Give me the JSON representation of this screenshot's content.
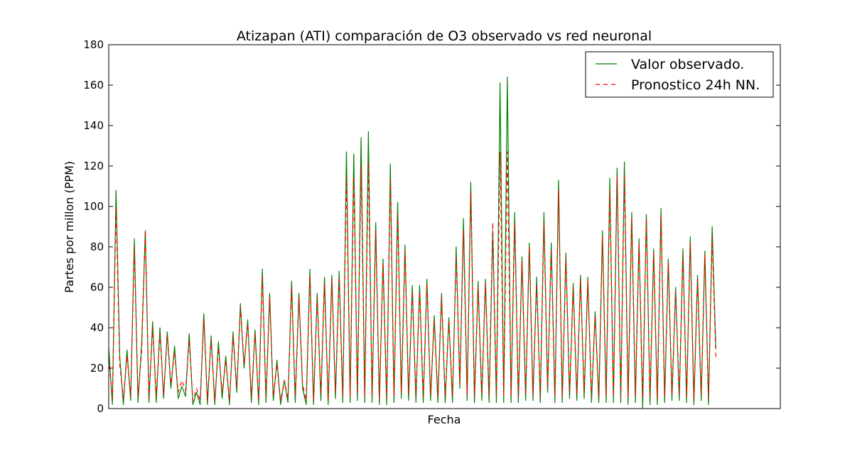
{
  "chart_data": {
    "type": "line",
    "title": "Atizapan (ATI) comparación de O3 observado vs red neuronal",
    "xlabel": "Fecha",
    "ylabel": "Partes por millon (PPM)",
    "ylim": [
      0,
      180
    ],
    "yticks": [
      0,
      20,
      40,
      60,
      80,
      100,
      120,
      140,
      160,
      180
    ],
    "x_tick_labels": [],
    "legend": {
      "placement": "top-right"
    },
    "grid": false,
    "x_approx": "hours elapsed (approximate, no dates printed on axis)",
    "series": [
      {
        "name": "Valor observado.",
        "color": "#008000",
        "style": "solid",
        "points": [
          [
            0,
            30
          ],
          [
            12,
            2
          ],
          [
            24,
            108
          ],
          [
            36,
            26
          ],
          [
            48,
            2
          ],
          [
            60,
            29
          ],
          [
            72,
            4
          ],
          [
            84,
            84
          ],
          [
            96,
            3
          ],
          [
            108,
            32
          ],
          [
            120,
            88
          ],
          [
            132,
            3
          ],
          [
            144,
            43
          ],
          [
            156,
            3
          ],
          [
            168,
            40
          ],
          [
            180,
            5
          ],
          [
            192,
            38
          ],
          [
            204,
            10
          ],
          [
            216,
            31
          ],
          [
            228,
            5
          ],
          [
            240,
            11
          ],
          [
            252,
            6
          ],
          [
            264,
            37
          ],
          [
            276,
            2
          ],
          [
            288,
            8
          ],
          [
            300,
            2
          ],
          [
            312,
            47
          ],
          [
            324,
            2
          ],
          [
            336,
            36
          ],
          [
            348,
            2
          ],
          [
            360,
            33
          ],
          [
            372,
            5
          ],
          [
            384,
            26
          ],
          [
            396,
            2
          ],
          [
            408,
            38
          ],
          [
            420,
            8
          ],
          [
            432,
            52
          ],
          [
            444,
            20
          ],
          [
            456,
            44
          ],
          [
            468,
            3
          ],
          [
            480,
            39
          ],
          [
            492,
            2
          ],
          [
            504,
            69
          ],
          [
            516,
            3
          ],
          [
            528,
            57
          ],
          [
            540,
            4
          ],
          [
            552,
            24
          ],
          [
            564,
            2
          ],
          [
            576,
            14
          ],
          [
            588,
            3
          ],
          [
            600,
            63
          ],
          [
            612,
            3
          ],
          [
            624,
            57
          ],
          [
            636,
            10
          ],
          [
            648,
            2
          ],
          [
            660,
            69
          ],
          [
            672,
            2
          ],
          [
            684,
            57
          ],
          [
            696,
            4
          ],
          [
            708,
            65
          ],
          [
            720,
            2
          ],
          [
            732,
            66
          ],
          [
            744,
            5
          ],
          [
            756,
            68
          ],
          [
            768,
            3
          ],
          [
            780,
            127
          ],
          [
            792,
            3
          ],
          [
            804,
            126
          ],
          [
            816,
            4
          ],
          [
            828,
            134
          ],
          [
            840,
            3
          ],
          [
            852,
            137
          ],
          [
            864,
            3
          ],
          [
            876,
            92
          ],
          [
            888,
            2
          ],
          [
            900,
            74
          ],
          [
            912,
            2
          ],
          [
            924,
            121
          ],
          [
            936,
            3
          ],
          [
            948,
            102
          ],
          [
            960,
            5
          ],
          [
            972,
            81
          ],
          [
            984,
            4
          ],
          [
            996,
            61
          ],
          [
            1008,
            3
          ],
          [
            1020,
            61
          ],
          [
            1032,
            3
          ],
          [
            1044,
            64
          ],
          [
            1056,
            4
          ],
          [
            1068,
            46
          ],
          [
            1080,
            3
          ],
          [
            1092,
            57
          ],
          [
            1104,
            3
          ],
          [
            1116,
            45
          ],
          [
            1128,
            3
          ],
          [
            1140,
            80
          ],
          [
            1152,
            10
          ],
          [
            1164,
            94
          ],
          [
            1176,
            4
          ],
          [
            1188,
            112
          ],
          [
            1200,
            3
          ],
          [
            1212,
            63
          ],
          [
            1224,
            4
          ],
          [
            1236,
            64
          ],
          [
            1248,
            3
          ],
          [
            1260,
            88
          ],
          [
            1272,
            3
          ],
          [
            1284,
            161
          ],
          [
            1296,
            3
          ],
          [
            1308,
            164
          ],
          [
            1320,
            3
          ],
          [
            1332,
            97
          ],
          [
            1344,
            3
          ],
          [
            1356,
            75
          ],
          [
            1368,
            4
          ],
          [
            1380,
            82
          ],
          [
            1392,
            4
          ],
          [
            1404,
            65
          ],
          [
            1416,
            3
          ],
          [
            1428,
            97
          ],
          [
            1440,
            8
          ],
          [
            1452,
            82
          ],
          [
            1464,
            3
          ],
          [
            1476,
            113
          ],
          [
            1488,
            3
          ],
          [
            1500,
            77
          ],
          [
            1512,
            5
          ],
          [
            1524,
            62
          ],
          [
            1536,
            4
          ],
          [
            1548,
            66
          ],
          [
            1560,
            5
          ],
          [
            1572,
            65
          ],
          [
            1584,
            3
          ],
          [
            1596,
            48
          ],
          [
            1608,
            3
          ],
          [
            1620,
            88
          ],
          [
            1632,
            3
          ],
          [
            1644,
            114
          ],
          [
            1656,
            3
          ],
          [
            1668,
            119
          ],
          [
            1680,
            3
          ],
          [
            1692,
            122
          ],
          [
            1704,
            2
          ],
          [
            1716,
            97
          ],
          [
            1728,
            3
          ],
          [
            1740,
            84
          ],
          [
            1752,
            0
          ],
          [
            1764,
            96
          ],
          [
            1776,
            2
          ],
          [
            1788,
            79
          ],
          [
            1800,
            2
          ],
          [
            1812,
            99
          ],
          [
            1824,
            3
          ],
          [
            1836,
            74
          ],
          [
            1848,
            4
          ],
          [
            1860,
            60
          ],
          [
            1872,
            4
          ],
          [
            1884,
            79
          ],
          [
            1896,
            3
          ],
          [
            1908,
            85
          ],
          [
            1920,
            2
          ],
          [
            1932,
            66
          ],
          [
            1944,
            4
          ],
          [
            1956,
            78
          ],
          [
            1968,
            2
          ],
          [
            1980,
            90
          ],
          [
            1992,
            30
          ]
        ]
      },
      {
        "name": "Pronostico 24h NN.",
        "color": "#ff0000",
        "style": "dashed",
        "points": [
          [
            0,
            25
          ],
          [
            12,
            5
          ],
          [
            24,
            100
          ],
          [
            36,
            22
          ],
          [
            48,
            5
          ],
          [
            60,
            26
          ],
          [
            72,
            6
          ],
          [
            84,
            80
          ],
          [
            96,
            6
          ],
          [
            108,
            28
          ],
          [
            120,
            88
          ],
          [
            132,
            5
          ],
          [
            144,
            40
          ],
          [
            156,
            6
          ],
          [
            168,
            37
          ],
          [
            180,
            7
          ],
          [
            192,
            36
          ],
          [
            204,
            12
          ],
          [
            216,
            28
          ],
          [
            228,
            8
          ],
          [
            240,
            14
          ],
          [
            252,
            9
          ],
          [
            264,
            34
          ],
          [
            276,
            4
          ],
          [
            288,
            10
          ],
          [
            300,
            4
          ],
          [
            312,
            44
          ],
          [
            324,
            4
          ],
          [
            336,
            34
          ],
          [
            348,
            4
          ],
          [
            360,
            30
          ],
          [
            372,
            8
          ],
          [
            384,
            24
          ],
          [
            396,
            4
          ],
          [
            408,
            36
          ],
          [
            420,
            10
          ],
          [
            432,
            50
          ],
          [
            444,
            22
          ],
          [
            456,
            42
          ],
          [
            468,
            6
          ],
          [
            480,
            37
          ],
          [
            492,
            4
          ],
          [
            504,
            66
          ],
          [
            516,
            6
          ],
          [
            528,
            55
          ],
          [
            540,
            6
          ],
          [
            552,
            22
          ],
          [
            564,
            4
          ],
          [
            576,
            14
          ],
          [
            588,
            5
          ],
          [
            600,
            60
          ],
          [
            612,
            6
          ],
          [
            624,
            55
          ],
          [
            636,
            12
          ],
          [
            648,
            4
          ],
          [
            660,
            66
          ],
          [
            672,
            4
          ],
          [
            684,
            55
          ],
          [
            696,
            7
          ],
          [
            708,
            62
          ],
          [
            720,
            4
          ],
          [
            732,
            64
          ],
          [
            744,
            8
          ],
          [
            756,
            65
          ],
          [
            768,
            6
          ],
          [
            780,
            115
          ],
          [
            792,
            6
          ],
          [
            804,
            115
          ],
          [
            816,
            7
          ],
          [
            828,
            120
          ],
          [
            840,
            6
          ],
          [
            852,
            122
          ],
          [
            864,
            6
          ],
          [
            876,
            88
          ],
          [
            888,
            5
          ],
          [
            900,
            72
          ],
          [
            912,
            5
          ],
          [
            924,
            113
          ],
          [
            936,
            6
          ],
          [
            948,
            96
          ],
          [
            960,
            8
          ],
          [
            972,
            78
          ],
          [
            984,
            7
          ],
          [
            996,
            58
          ],
          [
            1008,
            6
          ],
          [
            1020,
            58
          ],
          [
            1032,
            6
          ],
          [
            1044,
            62
          ],
          [
            1056,
            7
          ],
          [
            1068,
            44
          ],
          [
            1080,
            6
          ],
          [
            1092,
            55
          ],
          [
            1104,
            6
          ],
          [
            1116,
            44
          ],
          [
            1128,
            6
          ],
          [
            1140,
            76
          ],
          [
            1152,
            12
          ],
          [
            1164,
            88
          ],
          [
            1176,
            7
          ],
          [
            1188,
            107
          ],
          [
            1200,
            6
          ],
          [
            1212,
            60
          ],
          [
            1224,
            7
          ],
          [
            1236,
            62
          ],
          [
            1248,
            6
          ],
          [
            1260,
            92
          ],
          [
            1272,
            6
          ],
          [
            1284,
            127
          ],
          [
            1296,
            6
          ],
          [
            1308,
            127
          ],
          [
            1320,
            6
          ],
          [
            1332,
            92
          ],
          [
            1344,
            6
          ],
          [
            1356,
            73
          ],
          [
            1368,
            7
          ],
          [
            1380,
            80
          ],
          [
            1392,
            7
          ],
          [
            1404,
            62
          ],
          [
            1416,
            6
          ],
          [
            1428,
            92
          ],
          [
            1440,
            10
          ],
          [
            1452,
            79
          ],
          [
            1464,
            6
          ],
          [
            1476,
            108
          ],
          [
            1488,
            6
          ],
          [
            1500,
            75
          ],
          [
            1512,
            8
          ],
          [
            1524,
            60
          ],
          [
            1536,
            7
          ],
          [
            1548,
            64
          ],
          [
            1560,
            8
          ],
          [
            1572,
            63
          ],
          [
            1584,
            6
          ],
          [
            1596,
            46
          ],
          [
            1608,
            6
          ],
          [
            1620,
            85
          ],
          [
            1632,
            6
          ],
          [
            1644,
            108
          ],
          [
            1656,
            6
          ],
          [
            1668,
            115
          ],
          [
            1680,
            6
          ],
          [
            1692,
            116
          ],
          [
            1704,
            5
          ],
          [
            1716,
            95
          ],
          [
            1728,
            6
          ],
          [
            1740,
            82
          ],
          [
            1752,
            5
          ],
          [
            1764,
            94
          ],
          [
            1776,
            5
          ],
          [
            1788,
            77
          ],
          [
            1800,
            5
          ],
          [
            1812,
            96
          ],
          [
            1824,
            6
          ],
          [
            1836,
            72
          ],
          [
            1848,
            7
          ],
          [
            1860,
            58
          ],
          [
            1872,
            7
          ],
          [
            1884,
            76
          ],
          [
            1896,
            6
          ],
          [
            1908,
            82
          ],
          [
            1920,
            5
          ],
          [
            1932,
            64
          ],
          [
            1944,
            7
          ],
          [
            1956,
            76
          ],
          [
            1968,
            5
          ],
          [
            1980,
            85
          ],
          [
            1992,
            25
          ]
        ]
      }
    ]
  }
}
